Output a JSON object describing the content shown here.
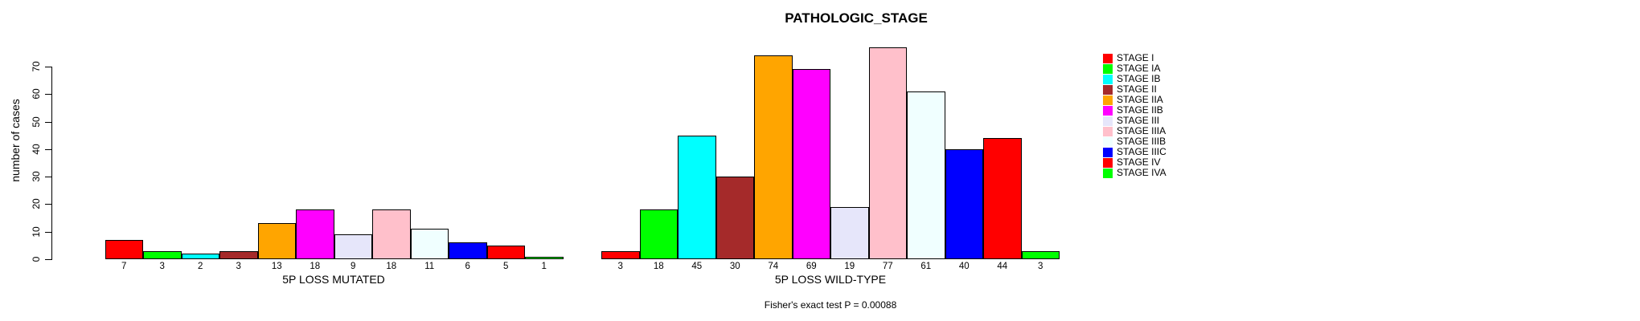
{
  "chart_data": {
    "type": "bar",
    "title": "PATHOLOGIC_STAGE",
    "ylabel": "number of cases",
    "xlabel": "",
    "ylim": [
      0,
      70
    ],
    "yticks": [
      0,
      10,
      20,
      30,
      40,
      50,
      60,
      70
    ],
    "grid": false,
    "legend_position": "right",
    "categories": [
      "STAGE I",
      "STAGE IA",
      "STAGE IB",
      "STAGE II",
      "STAGE IIA",
      "STAGE IIB",
      "STAGE III",
      "STAGE IIIA",
      "STAGE IIIB",
      "STAGE IIIC",
      "STAGE IV",
      "STAGE IVA"
    ],
    "colors": [
      "#FF0000",
      "#00FF00",
      "#00FFFF",
      "#A52A2A",
      "#FFA500",
      "#FF00FF",
      "#E6E6FA",
      "#FFC0CB",
      "#F0FFFF",
      "#0000FF",
      "#FF0000",
      "#00FF00"
    ],
    "series": [
      {
        "name": "5P LOSS MUTATED",
        "values": [
          7,
          3,
          2,
          3,
          13,
          18,
          9,
          18,
          11,
          6,
          5,
          1
        ]
      },
      {
        "name": "5P LOSS WILD-TYPE",
        "values": [
          3,
          18,
          45,
          30,
          74,
          69,
          19,
          77,
          61,
          40,
          44,
          3
        ]
      }
    ],
    "bar_value_labels_shown": true,
    "footnote": "Fisher's exact test P = 0.00088"
  }
}
